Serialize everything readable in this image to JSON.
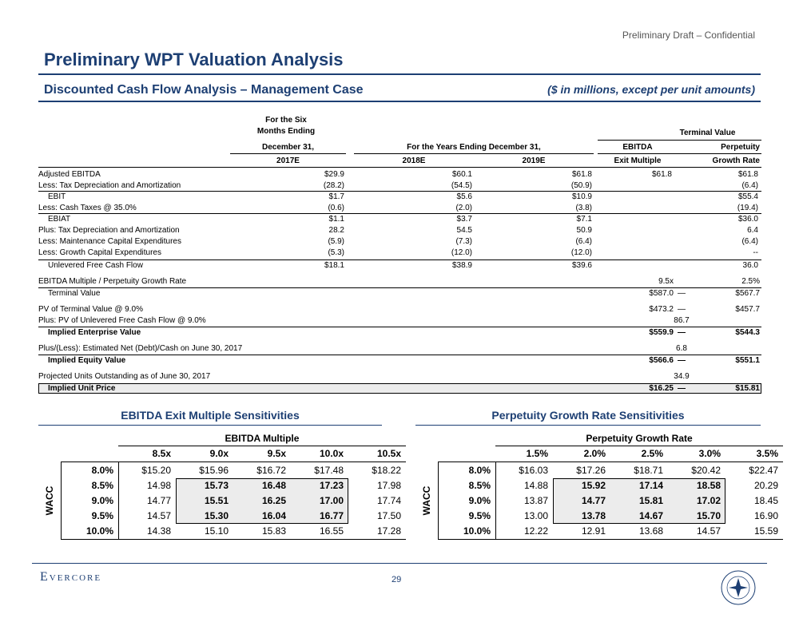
{
  "header": {
    "draft": "Preliminary Draft – Confidential",
    "title": "Preliminary WPT Valuation Analysis"
  },
  "subheader": {
    "left": "Discounted Cash Flow Analysis – Management Case",
    "right": "($ in millions, except per unit amounts)"
  },
  "dcf": {
    "head": {
      "six_line1": "For the Six",
      "six_line2": "Months Ending",
      "six_line3": "December 31,",
      "years": "For the Years Ending December 31,",
      "terminal": "Terminal Value",
      "ebitda": "EBITDA",
      "exit": "Exit Multiple",
      "perp": "Perpetuity",
      "growth": "Growth Rate",
      "y2017": "2017E",
      "y2018": "2018E",
      "y2019": "2019E"
    },
    "rows": [
      {
        "label": "Adjusted EBITDA",
        "v": [
          "$29.9",
          "$60.1",
          "$61.8",
          "$61.8",
          "$61.8"
        ]
      },
      {
        "label": "Less: Tax Depreciation and Amortization",
        "v": [
          "(28.2)",
          "(54.5)",
          "(50.9)",
          "",
          "(6.4)"
        ]
      },
      {
        "label": "EBIT",
        "v": [
          "$1.7",
          "$5.6",
          "$10.9",
          "",
          "$55.4"
        ]
      },
      {
        "label": "Less: Cash Taxes @ 35.0%",
        "v": [
          "(0.6)",
          "(2.0)",
          "(3.8)",
          "",
          "(19.4)"
        ]
      },
      {
        "label": "EBIAT",
        "v": [
          "$1.1",
          "$3.7",
          "$7.1",
          "",
          "$36.0"
        ]
      },
      {
        "label": "Plus: Tax Depreciation and Amortization",
        "v": [
          "28.2",
          "54.5",
          "50.9",
          "",
          "6.4"
        ]
      },
      {
        "label": "Less: Maintenance Capital Expenditures",
        "v": [
          "(5.9)",
          "(7.3)",
          "(6.4)",
          "",
          "(6.4)"
        ]
      },
      {
        "label": "Less: Growth Capital Expenditures",
        "v": [
          "(5.3)",
          "(12.0)",
          "(12.0)",
          "",
          "--"
        ]
      },
      {
        "label": "Unlevered Free Cash Flow",
        "v": [
          "$18.1",
          "$38.9",
          "$39.6",
          "",
          "36.0"
        ]
      }
    ],
    "lower": {
      "multiple_label": "EBITDA Multiple / Perpetuity Growth Rate",
      "multiple_exit": "9.5x",
      "multiple_perp": "2.5%",
      "tv_label": "Terminal Value",
      "tv_exit": "$587.0",
      "tv_perp": "$567.7",
      "pvtv_label": "PV of Terminal Value @ 9.0%",
      "pvtv_exit": "$473.2",
      "pvtv_perp": "$457.7",
      "pvfcf_label": "Plus: PV of Unlevered Free Cash Flow @ 9.0%",
      "pvfcf_val": "86.7",
      "ev_label": "Implied Enterprise Value",
      "ev_exit": "$559.9",
      "ev_perp": "$544.3",
      "debt_label": "Plus/(Less): Estimated Net (Debt)/Cash on June 30, 2017",
      "debt_val": "6.8",
      "eq_label": "Implied Equity Value",
      "eq_exit": "$566.6",
      "eq_perp": "$551.1",
      "units_label": "Projected Units Outstanding as of June 30, 2017",
      "units_val": "34.9",
      "price_label": "Implied Unit Price",
      "price_exit": "$16.25",
      "price_perp": "$15.81",
      "dash": "—"
    }
  },
  "sens_ebitda": {
    "title": "EBITDA Exit Multiple Sensitivities",
    "axis": "EBITDA Multiple",
    "wacc": "WACC",
    "cols": [
      "8.5x",
      "9.0x",
      "9.5x",
      "10.0x",
      "10.5x"
    ],
    "rows": [
      {
        "rate": "8.0%",
        "v": [
          "$15.20",
          "$15.96",
          "$16.72",
          "$17.48",
          "$18.22"
        ]
      },
      {
        "rate": "8.5%",
        "v": [
          "14.98",
          "15.73",
          "16.48",
          "17.23",
          "17.98"
        ]
      },
      {
        "rate": "9.0%",
        "v": [
          "14.77",
          "15.51",
          "16.25",
          "17.00",
          "17.74"
        ]
      },
      {
        "rate": "9.5%",
        "v": [
          "14.57",
          "15.30",
          "16.04",
          "16.77",
          "17.50"
        ]
      },
      {
        "rate": "10.0%",
        "v": [
          "14.38",
          "15.10",
          "15.83",
          "16.55",
          "17.28"
        ]
      }
    ]
  },
  "sens_perp": {
    "title": "Perpetuity Growth Rate Sensitivities",
    "axis": "Perpetuity Growth Rate",
    "wacc": "WACC",
    "cols": [
      "1.5%",
      "2.0%",
      "2.5%",
      "3.0%",
      "3.5%"
    ],
    "rows": [
      {
        "rate": "8.0%",
        "v": [
          "$16.03",
          "$17.26",
          "$18.71",
          "$20.42",
          "$22.47"
        ]
      },
      {
        "rate": "8.5%",
        "v": [
          "14.88",
          "15.92",
          "17.14",
          "18.58",
          "20.29"
        ]
      },
      {
        "rate": "9.0%",
        "v": [
          "13.87",
          "14.77",
          "15.81",
          "17.02",
          "18.45"
        ]
      },
      {
        "rate": "9.5%",
        "v": [
          "13.00",
          "13.78",
          "14.67",
          "15.70",
          "16.90"
        ]
      },
      {
        "rate": "10.0%",
        "v": [
          "12.22",
          "12.91",
          "13.68",
          "14.57",
          "15.59"
        ]
      }
    ]
  },
  "footer": {
    "logo": "Evercore",
    "page": "29",
    "seal": "World Point Terminals"
  },
  "colors": {
    "brand": "#1d3f73",
    "shade": "#ececec"
  }
}
